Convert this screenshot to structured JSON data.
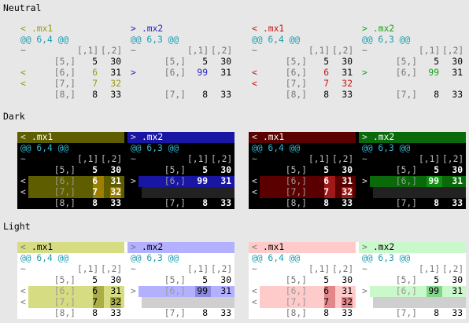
{
  "sections": {
    "neutral": "Neutral",
    "dark": "Dark",
    "light": "Light"
  },
  "diff": {
    "left_name": ".mx1",
    "right_name": ".mx2",
    "left_marker": "<",
    "right_marker": ">",
    "left_hunk": "@@ 6,4 @@",
    "right_hunk": "@@ 6,3 @@",
    "tilde": "~",
    "col_headers": [
      "[,1]",
      "[,2]"
    ],
    "left_rows": [
      {
        "idx": "[5,]",
        "c1": "5",
        "c2": "30"
      },
      {
        "idx": "[6,]",
        "c1": "6",
        "c2": "31"
      },
      {
        "idx": "[7,]",
        "c1": "7",
        "c2": "32"
      },
      {
        "idx": "[8,]",
        "c1": "8",
        "c2": "33"
      }
    ],
    "right_rows": [
      {
        "idx": "[5,]",
        "c1": "5",
        "c2": "30"
      },
      {
        "idx": "[6,]",
        "c1": "99",
        "c2": "31"
      },
      {
        "idx": "[7,]",
        "c1": "8",
        "c2": "33"
      }
    ]
  },
  "colors": {
    "neutral_left_olive": "#9a9a14",
    "neutral_right_blue": "#2626c8",
    "neutral_left_red": "#c81414",
    "neutral_right_green": "#14a314",
    "dark_olive_bg": "#5e5e00",
    "dark_olive_cell": "#9c7f00",
    "dark_blue_bg": "#1a16a4",
    "dark_red_bg": "#5a0000",
    "dark_red_cell": "#a01818",
    "dark_green_bg": "#0a6a0a",
    "dark_green_cell": "#0f8f0f",
    "light_olive_bg": "#d6dc82",
    "light_olive_cell": "#adad46",
    "light_blue_bg": "#b2b0ff",
    "light_blue_cell": "#8d8ae0",
    "light_red_bg": "#ffcaca",
    "light_red_cell": "#e2878a",
    "light_green_bg": "#c9f8cb",
    "light_green_cell": "#84d58a"
  }
}
